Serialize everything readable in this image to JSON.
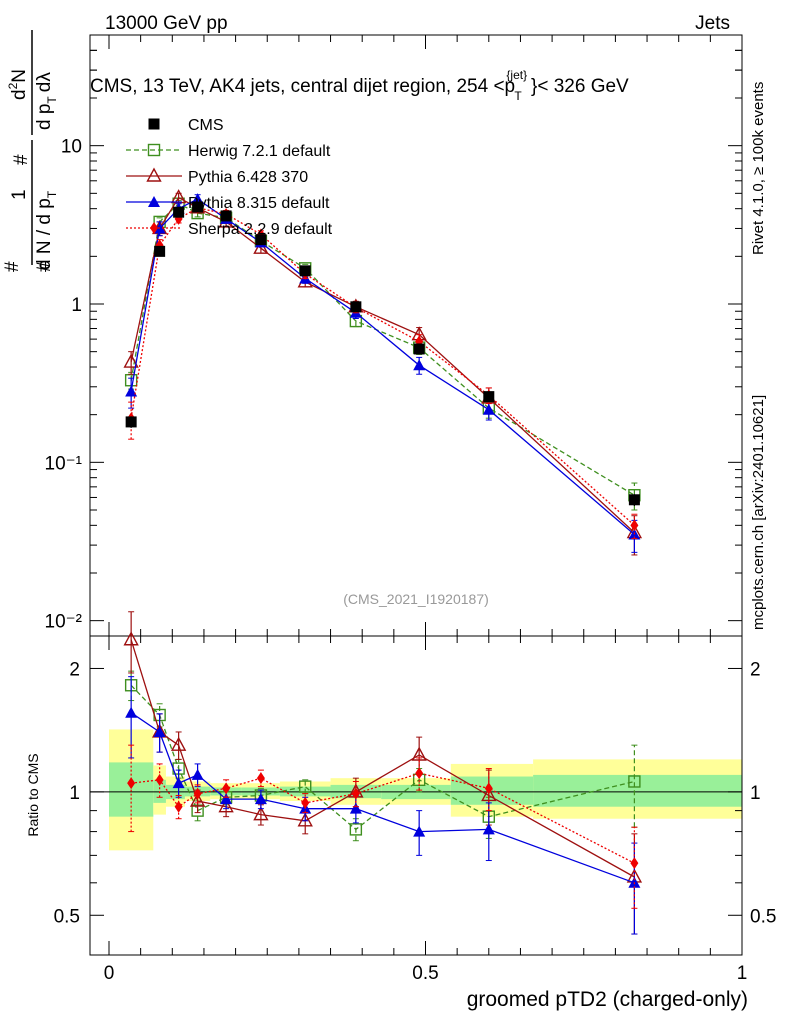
{
  "header": {
    "energy_label": "13000 GeV pp",
    "category_label": "Jets",
    "main_title": "CMS, 13 TeV, AK4 jets, central dijet region, 254 <p",
    "title_sup": "{jet}",
    "title_sub": "T",
    "title_tail": "}< 326 GeV",
    "analysis_id": "(CMS_2021_I1920187)",
    "side_rivet": "Rivet 4.1.0, ≥ 100k events",
    "side_mcplots": "mcplots.cern.ch [arXiv:2401.10621]"
  },
  "colors": {
    "data": "#000000",
    "herwig": "#3f8f1f",
    "pythia6": "#9e1010",
    "pythia8": "#0000dd",
    "sherpa": "#ee0000",
    "band_yellow": "#ffff99",
    "band_green": "#99f099"
  },
  "chart_data": [
    {
      "type": "scatter",
      "panel": "main",
      "ylabel_parts": [
        "1",
        "d N / d p",
        "T",
        "#",
        "d",
        "2",
        "N",
        "d p",
        "T",
        "dλ",
        "#",
        "#"
      ],
      "yscale": "log",
      "ylim": [
        0.008,
        50
      ],
      "xlim": [
        -0.03,
        1.0
      ],
      "ytick_labels": [
        "10⁻²",
        "10⁻¹",
        "1",
        "10"
      ],
      "ytick_values": [
        0.01,
        0.1,
        1,
        10
      ],
      "legend_position": "top-left",
      "x": [
        0.035,
        0.08,
        0.11,
        0.14,
        0.185,
        0.24,
        0.31,
        0.39,
        0.49,
        0.6,
        0.83
      ],
      "series": [
        {
          "name": "CMS",
          "key": "data",
          "marker": "square-filled",
          "values": [
            0.18,
            2.15,
            3.8,
            4.1,
            3.6,
            2.55,
            1.62,
            0.96,
            0.52,
            0.26,
            0.058
          ],
          "errors": [
            0.015,
            0.1,
            0.15,
            0.15,
            0.12,
            0.1,
            0.07,
            0.05,
            0.04,
            0.02,
            0.005
          ]
        },
        {
          "name": "Herwig 7.2.1 default",
          "key": "herwig",
          "marker": "square-open",
          "dash": "5,3",
          "values": [
            0.33,
            3.3,
            4.3,
            3.75,
            3.5,
            2.5,
            1.68,
            0.78,
            0.53,
            0.22,
            0.062
          ],
          "errors": [
            0.04,
            0.2,
            0.2,
            0.2,
            0.2,
            0.15,
            0.1,
            0.06,
            0.05,
            0.03,
            0.012
          ]
        },
        {
          "name": "Pythia 6.428 370",
          "key": "pythia6",
          "marker": "triangle-open",
          "dash": "",
          "values": [
            0.43,
            3.0,
            4.7,
            4.05,
            3.3,
            2.25,
            1.38,
            0.96,
            0.64,
            0.255,
            0.036
          ],
          "errors": [
            0.07,
            0.3,
            0.3,
            0.25,
            0.2,
            0.15,
            0.1,
            0.08,
            0.07,
            0.04,
            0.01
          ]
        },
        {
          "name": "Pythia 8.315 default",
          "key": "pythia8",
          "marker": "triangle-filled",
          "dash": "",
          "values": [
            0.28,
            3.0,
            4.0,
            4.6,
            3.45,
            2.45,
            1.45,
            0.88,
            0.41,
            0.215,
            0.035
          ],
          "errors": [
            0.06,
            0.3,
            0.3,
            0.3,
            0.2,
            0.15,
            0.1,
            0.07,
            0.05,
            0.03,
            0.008
          ]
        },
        {
          "name": "Sherpa 2.2.9 default",
          "key": "sherpa",
          "marker": "diamond-filled",
          "dash": "2,2",
          "values": [
            0.19,
            2.35,
            3.45,
            4.05,
            3.7,
            2.75,
            1.55,
            0.95,
            0.58,
            0.265,
            0.04
          ],
          "errors": [
            0.05,
            0.2,
            0.2,
            0.2,
            0.2,
            0.15,
            0.1,
            0.07,
            0.06,
            0.03,
            0.007
          ]
        }
      ]
    },
    {
      "type": "scatter",
      "panel": "ratio",
      "ylabel": "Ratio to CMS",
      "xlabel": "groomed pTD2 (charged-only)",
      "yscale": "log",
      "ylim": [
        0.4,
        2.4
      ],
      "xlim": [
        -0.03,
        1.0
      ],
      "ytick_labels": [
        "0.5",
        "1",
        "2"
      ],
      "ytick_values": [
        0.5,
        1,
        2
      ],
      "xtick_labels": [
        "0",
        "0.5",
        "1"
      ],
      "xtick_values": [
        0,
        0.5,
        1
      ],
      "reference_line": 1,
      "x": [
        0.035,
        0.08,
        0.11,
        0.14,
        0.185,
        0.24,
        0.31,
        0.39,
        0.49,
        0.6,
        0.83
      ],
      "bins": [
        [
          0.0,
          0.07
        ],
        [
          0.07,
          0.09
        ],
        [
          0.09,
          0.12
        ],
        [
          0.12,
          0.16
        ],
        [
          0.16,
          0.21
        ],
        [
          0.21,
          0.27
        ],
        [
          0.27,
          0.35
        ],
        [
          0.35,
          0.43
        ],
        [
          0.43,
          0.54
        ],
        [
          0.54,
          0.67
        ],
        [
          0.67,
          1.0
        ]
      ],
      "band_outer": [
        [
          0.72,
          1.42
        ],
        [
          0.88,
          1.16
        ],
        [
          0.92,
          1.09
        ],
        [
          0.95,
          1.06
        ],
        [
          0.96,
          1.05
        ],
        [
          0.96,
          1.05
        ],
        [
          0.95,
          1.06
        ],
        [
          0.93,
          1.08
        ],
        [
          0.93,
          1.08
        ],
        [
          0.87,
          1.17
        ],
        [
          0.86,
          1.2
        ]
      ],
      "band_inner": [
        [
          0.87,
          1.18
        ],
        [
          0.94,
          1.07
        ],
        [
          0.96,
          1.04
        ],
        [
          0.975,
          1.03
        ],
        [
          0.98,
          1.025
        ],
        [
          0.98,
          1.025
        ],
        [
          0.975,
          1.03
        ],
        [
          0.965,
          1.04
        ],
        [
          0.96,
          1.04
        ],
        [
          0.93,
          1.09
        ],
        [
          0.92,
          1.1
        ]
      ],
      "series": [
        {
          "name": "Herwig 7.2.1 default",
          "key": "herwig",
          "marker": "square-open",
          "dash": "5,3",
          "values": [
            1.82,
            1.54,
            1.14,
            0.9,
            0.97,
            0.98,
            1.03,
            0.81,
            1.07,
            0.87,
            1.06
          ],
          "errors": [
            0.15,
            0.1,
            0.06,
            0.05,
            0.04,
            0.04,
            0.04,
            0.05,
            0.07,
            0.1,
            0.24
          ]
        },
        {
          "name": "Pythia 6.428 370",
          "key": "pythia6",
          "marker": "triangle-open",
          "dash": "",
          "values": [
            2.35,
            1.4,
            1.3,
            0.95,
            0.92,
            0.88,
            0.85,
            1.0,
            1.23,
            0.98,
            0.62
          ],
          "errors": [
            0.4,
            0.15,
            0.1,
            0.06,
            0.05,
            0.05,
            0.06,
            0.08,
            0.13,
            0.15,
            0.17
          ]
        },
        {
          "name": "Pythia 8.315 default",
          "key": "pythia8",
          "marker": "triangle-filled",
          "dash": "",
          "values": [
            1.56,
            1.4,
            1.05,
            1.1,
            0.96,
            0.96,
            0.91,
            0.91,
            0.8,
            0.81,
            0.6
          ],
          "errors": [
            0.35,
            0.15,
            0.08,
            0.07,
            0.05,
            0.05,
            0.06,
            0.07,
            0.1,
            0.13,
            0.15
          ]
        },
        {
          "name": "Sherpa 2.2.9 default",
          "key": "sherpa",
          "marker": "diamond-filled",
          "dash": "2,2",
          "values": [
            1.05,
            1.07,
            0.92,
            0.99,
            1.02,
            1.08,
            0.94,
            0.99,
            1.11,
            1.02,
            0.67
          ],
          "errors": [
            0.25,
            0.1,
            0.06,
            0.05,
            0.05,
            0.05,
            0.05,
            0.07,
            0.1,
            0.12,
            0.15
          ]
        }
      ]
    }
  ]
}
